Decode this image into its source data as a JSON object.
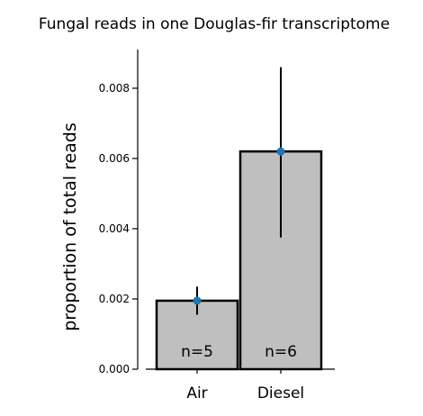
{
  "chart_data": {
    "type": "bar",
    "title": "Fungal reads in one Douglas-fir transcriptome",
    "xlabel": "",
    "ylabel": "proportion of total reads",
    "categories": [
      "Air",
      "Diesel"
    ],
    "values": [
      0.00195,
      0.0062
    ],
    "error_low": [
      0.00155,
      0.00375
    ],
    "error_high": [
      0.00235,
      0.0086
    ],
    "annotations": [
      "n=5",
      "n=6"
    ],
    "yticks": [
      "0.000",
      "0.002",
      "0.004",
      "0.006",
      "0.008"
    ],
    "ylim": [
      0,
      0.0091
    ],
    "grid": false,
    "bar_color": "#bfbfbf",
    "point_color": "#1f77b4"
  }
}
